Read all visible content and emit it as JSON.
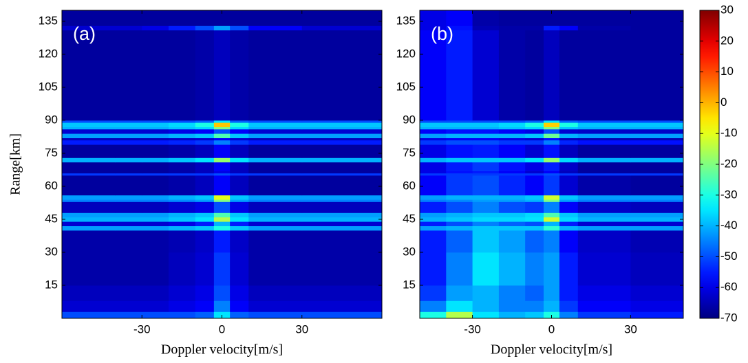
{
  "chart_data": [
    {
      "type": "heatmap",
      "label": "(a)",
      "xlabel": "Doppler velocity[m/s]",
      "ylabel": "Range[km]",
      "xlim": [
        -60,
        60
      ],
      "xticks": [
        -30,
        0,
        30
      ],
      "ylim": [
        0,
        140
      ],
      "yticks": [
        15,
        30,
        45,
        60,
        75,
        90,
        105,
        120,
        135
      ],
      "zlim": [
        -70,
        30
      ],
      "xbins": [
        -60,
        -40,
        -30,
        -20,
        -10,
        -3,
        3,
        10,
        30,
        60
      ],
      "ybins": [
        0,
        3,
        8,
        15,
        30,
        40,
        42,
        44,
        46,
        48,
        53,
        54,
        56,
        65,
        66,
        67,
        71,
        73,
        79,
        81,
        82,
        84,
        86,
        87,
        89,
        90,
        131,
        133,
        140
      ],
      "z": [
        [
          -50,
          -50,
          -50,
          -50,
          -48,
          -35,
          -48,
          -50,
          -50
        ],
        [
          -62,
          -62,
          -62,
          -60,
          -58,
          -45,
          -58,
          -62,
          -62
        ],
        [
          -64,
          -64,
          -64,
          -62,
          -60,
          -50,
          -60,
          -64,
          -64
        ],
        [
          -66,
          -66,
          -66,
          -64,
          -62,
          -52,
          -62,
          -66,
          -66
        ],
        [
          -66,
          -66,
          -66,
          -65,
          -63,
          -55,
          -63,
          -66,
          -66
        ],
        [
          -42,
          -42,
          -42,
          -40,
          -38,
          -30,
          -38,
          -42,
          -42
        ],
        [
          -62,
          -62,
          -62,
          -60,
          -55,
          -40,
          -55,
          -62,
          -62
        ],
        [
          -40,
          -40,
          -40,
          -38,
          -35,
          -15,
          -35,
          -40,
          -40
        ],
        [
          -42,
          -42,
          -42,
          -40,
          -38,
          -25,
          -38,
          -42,
          -42
        ],
        [
          -64,
          -64,
          -64,
          -62,
          -60,
          -50,
          -60,
          -64,
          -64
        ],
        [
          -45,
          -45,
          -45,
          -44,
          -42,
          -20,
          -42,
          -45,
          -45
        ],
        [
          -42,
          -42,
          -42,
          -40,
          -38,
          -10,
          -38,
          -42,
          -42
        ],
        [
          -67,
          -67,
          -67,
          -66,
          -64,
          -58,
          -64,
          -67,
          -67
        ],
        [
          -52,
          -52,
          -52,
          -52,
          -52,
          -50,
          -52,
          -52,
          -52
        ],
        [
          -67,
          -67,
          -67,
          -66,
          -64,
          -60,
          -64,
          -67,
          -67
        ],
        [
          -67,
          -67,
          -67,
          -66,
          -64,
          -58,
          -64,
          -67,
          -67
        ],
        [
          -40,
          -40,
          -40,
          -38,
          -35,
          -18,
          -35,
          -40,
          -40
        ],
        [
          -67,
          -67,
          -67,
          -66,
          -64,
          -58,
          -64,
          -67,
          -67
        ],
        [
          -55,
          -55,
          -55,
          -54,
          -52,
          -45,
          -52,
          -55,
          -55
        ],
        [
          -64,
          -64,
          -64,
          -63,
          -62,
          -58,
          -62,
          -64,
          -64
        ],
        [
          -42,
          -42,
          -42,
          -40,
          -38,
          -25,
          -38,
          -42,
          -42
        ],
        [
          -62,
          -62,
          -62,
          -60,
          -58,
          -50,
          -58,
          -62,
          -62
        ],
        [
          -40,
          -40,
          -40,
          -38,
          -36,
          -20,
          -36,
          -40,
          -40
        ],
        [
          -38,
          -38,
          -38,
          -36,
          -30,
          -2,
          -30,
          -38,
          -38
        ],
        [
          -50,
          -50,
          -50,
          -50,
          -48,
          -35,
          -48,
          -50,
          -50
        ],
        [
          -67,
          -67,
          -67,
          -67,
          -66,
          -64,
          -66,
          -67,
          -67
        ],
        [
          -62,
          -62,
          -60,
          -55,
          -50,
          -42,
          -50,
          -58,
          -62
        ],
        [
          -67,
          -67,
          -67,
          -67,
          -67,
          -67,
          -67,
          -67,
          -67
        ]
      ]
    },
    {
      "type": "heatmap",
      "label": "(b)",
      "xlabel": "Doppler velocity[m/s]",
      "xlim": [
        -50,
        50
      ],
      "xticks": [
        -30,
        0,
        30
      ],
      "ylim": [
        0,
        140
      ],
      "yticks": [
        15,
        30,
        45,
        60,
        75,
        90,
        105,
        120,
        135
      ],
      "zlim": [
        -70,
        30
      ],
      "colorbar": true,
      "zticks": [
        -70,
        -60,
        -50,
        -40,
        -30,
        -20,
        -10,
        0,
        10,
        20,
        30
      ],
      "xbins": [
        -50,
        -40,
        -30,
        -20,
        -10,
        -3,
        3,
        10,
        30,
        50
      ],
      "ybins": [
        0,
        3,
        8,
        15,
        30,
        40,
        42,
        44,
        46,
        48,
        53,
        54,
        56,
        65,
        66,
        67,
        71,
        73,
        79,
        81,
        82,
        84,
        86,
        87,
        89,
        90,
        131,
        133,
        140
      ],
      "z": [
        [
          -30,
          -15,
          -35,
          -40,
          -38,
          -30,
          -45,
          -52,
          -55
        ],
        [
          -45,
          -35,
          -40,
          -45,
          -45,
          -40,
          -52,
          -58,
          -60
        ],
        [
          -52,
          -42,
          -40,
          -45,
          -48,
          -42,
          -55,
          -60,
          -62
        ],
        [
          -55,
          -45,
          -35,
          -40,
          -45,
          -42,
          -55,
          -62,
          -64
        ],
        [
          -55,
          -48,
          -38,
          -42,
          -48,
          -45,
          -58,
          -63,
          -65
        ],
        [
          -42,
          -40,
          -38,
          -38,
          -38,
          -28,
          -40,
          -42,
          -42
        ],
        [
          -55,
          -50,
          -45,
          -48,
          -50,
          -40,
          -55,
          -62,
          -62
        ],
        [
          -40,
          -38,
          -36,
          -36,
          -35,
          -12,
          -36,
          -40,
          -40
        ],
        [
          -42,
          -40,
          -38,
          -38,
          -36,
          -25,
          -38,
          -42,
          -42
        ],
        [
          -55,
          -50,
          -45,
          -50,
          -52,
          -45,
          -58,
          -63,
          -64
        ],
        [
          -45,
          -44,
          -42,
          -42,
          -40,
          -20,
          -42,
          -45,
          -45
        ],
        [
          -42,
          -40,
          -40,
          -40,
          -38,
          -12,
          -38,
          -42,
          -42
        ],
        [
          -58,
          -52,
          -50,
          -54,
          -58,
          -52,
          -62,
          -66,
          -67
        ],
        [
          -52,
          -52,
          -52,
          -52,
          -52,
          -50,
          -52,
          -52,
          -52
        ],
        [
          -60,
          -56,
          -55,
          -58,
          -62,
          -58,
          -64,
          -67,
          -67
        ],
        [
          -60,
          -55,
          -52,
          -56,
          -60,
          -55,
          -63,
          -67,
          -67
        ],
        [
          -40,
          -38,
          -38,
          -38,
          -35,
          -18,
          -36,
          -40,
          -40
        ],
        [
          -60,
          -56,
          -55,
          -58,
          -62,
          -56,
          -64,
          -67,
          -67
        ],
        [
          -52,
          -50,
          -50,
          -52,
          -52,
          -45,
          -54,
          -56,
          -56
        ],
        [
          -60,
          -58,
          -58,
          -60,
          -62,
          -56,
          -64,
          -65,
          -65
        ],
        [
          -42,
          -40,
          -40,
          -40,
          -38,
          -22,
          -40,
          -42,
          -42
        ],
        [
          -58,
          -56,
          -56,
          -58,
          -60,
          -50,
          -62,
          -63,
          -63
        ],
        [
          -40,
          -40,
          -40,
          -38,
          -36,
          -20,
          -38,
          -40,
          -40
        ],
        [
          -38,
          -38,
          -38,
          -36,
          -30,
          -3,
          -30,
          -38,
          -38
        ],
        [
          -50,
          -50,
          -50,
          -50,
          -48,
          -35,
          -48,
          -50,
          -50
        ],
        [
          -58,
          -55,
          -62,
          -66,
          -67,
          -64,
          -67,
          -67,
          -67
        ],
        [
          -60,
          -56,
          -65,
          -66,
          -66,
          -55,
          -58,
          -66,
          -67
        ],
        [
          -60,
          -58,
          -66,
          -67,
          -67,
          -67,
          -67,
          -67,
          -67
        ]
      ]
    }
  ]
}
